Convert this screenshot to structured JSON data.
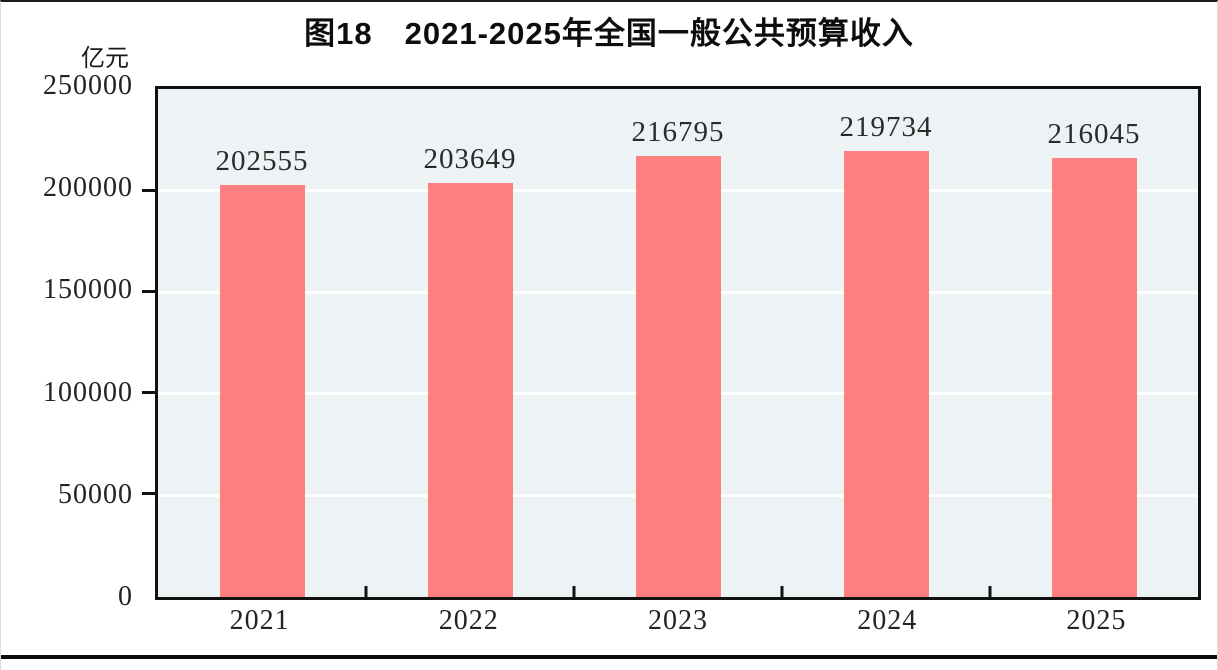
{
  "title": "图18　2021-2025年全国一般公共预算收入",
  "y_axis_unit": "亿元",
  "chart_data": {
    "type": "bar",
    "title": "图18　2021-2025年全国一般公共预算收入",
    "ylabel": "亿元",
    "xlabel": "",
    "categories": [
      "2021",
      "2022",
      "2023",
      "2024",
      "2025"
    ],
    "values": [
      202555,
      203649,
      216795,
      219734,
      216045
    ],
    "data_labels": [
      "202555",
      "203649",
      "216795",
      "219734",
      "216045"
    ],
    "ylim": [
      0,
      250000
    ],
    "yticks": [
      0,
      50000,
      100000,
      150000,
      200000,
      250000
    ],
    "grid": "horizontal white gridlines at 50000 intervals",
    "legend_position": "none",
    "colors": {
      "bar": "#fe7f7f",
      "plot_background": "#edf3f5",
      "gridline": "#ffffff",
      "axis_border": "#111111",
      "label_text": "#2b2b2b"
    }
  }
}
